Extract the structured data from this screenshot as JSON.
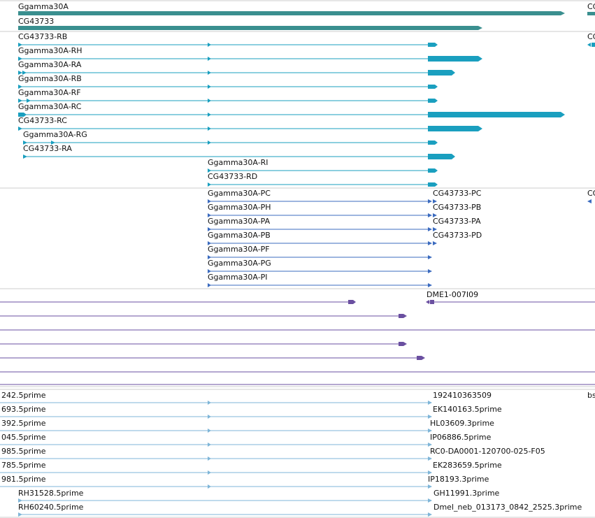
{
  "track_gene": {
    "labels": [
      "Ggamma30A",
      "CG43733"
    ],
    "clipped_labels": [
      "CG",
      "CG"
    ]
  },
  "track_transcripts": {
    "labels": [
      "CG43733-RB",
      "Ggamma30A-RH",
      "Ggamma30A-RA",
      "Ggamma30A-RB",
      "Ggamma30A-RF",
      "Ggamma30A-RC",
      "CG43733-RC",
      "Ggamma30A-RG",
      "CG43733-RA",
      "Ggamma30A-RI",
      "CG43733-RD"
    ]
  },
  "track_proteins": {
    "left_labels": [
      "Ggamma30A-PC",
      "Ggamma30A-PH",
      "Ggamma30A-PA",
      "Ggamma30A-PB",
      "Ggamma30A-PF",
      "Ggamma30A-PG",
      "Ggamma30A-PI"
    ],
    "right_labels": [
      "CG43733-PC",
      "CG43733-PB",
      "CG43733-PA",
      "CG43733-PD"
    ],
    "clipped_label": "CG"
  },
  "track_clones": {
    "label": "DME1-007I09"
  },
  "track_ests": {
    "left_labels": [
      "242.5prime",
      "693.5prime",
      "392.5prime",
      "045.5prime",
      "985.5prime",
      "785.5prime",
      "981.5prime",
      "RH31528.5prime",
      "RH60240.5prime"
    ],
    "right_labels": [
      "192410363509",
      "EK140163.5prime",
      "HL03609.3prime",
      "IP06886.5prime",
      "RC0-DA0001-120700-025-F05",
      "EK283659.5prime",
      "IP18193.3prime",
      "GH11991.3prime",
      "Dmel_neb_013173_0842_2525.3prime"
    ],
    "clipped_label": "bs"
  },
  "colors": {
    "gene": "#3a8f8f",
    "transcript": "#1a9fbf",
    "protein": "#3b6bbf",
    "clone": "#6a4fa0",
    "est": "#7fb6d8",
    "divider": "#cccccc"
  }
}
